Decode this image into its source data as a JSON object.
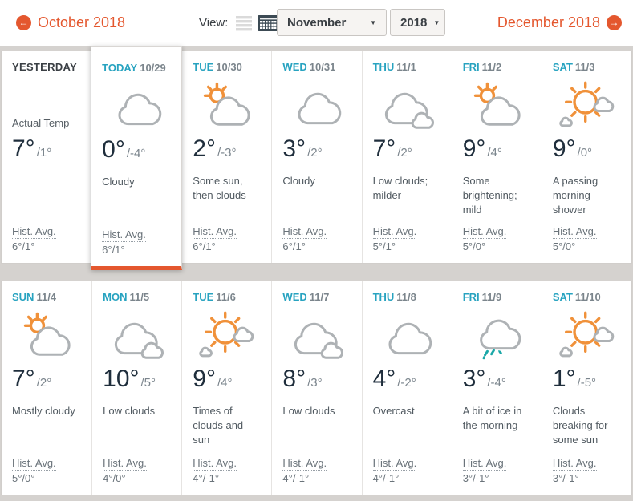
{
  "page": {
    "background": "#d5d2cf",
    "accent_orange": "#e4572e",
    "accent_teal": "#28a3c0",
    "sun_color": "#f0913a",
    "ice_color": "#1ba8a8"
  },
  "topbar": {
    "prev_label": "October 2018",
    "view_label": "View:",
    "view_icons": [
      "list-view-icon",
      "calendar-view-icon"
    ],
    "month_value": "November",
    "year_value": "2018",
    "next_label": "December 2018"
  },
  "hist_label": "Hist. Avg.",
  "rows": [
    {
      "cards": [
        {
          "name": "YESTERDAY",
          "date": "",
          "icon": "none",
          "yesterday": true,
          "pre_temp": "Actual Temp",
          "high": "7°",
          "low": "/1°",
          "desc": "",
          "hist": "6°/1°"
        },
        {
          "name": "TODAY",
          "date": "10/29",
          "icon": "cloud",
          "today": true,
          "high": "0°",
          "low": "/-4°",
          "desc": "Cloudy",
          "hist": "6°/1°"
        },
        {
          "name": "TUE",
          "date": "10/30",
          "icon": "partly-sunny",
          "high": "2°",
          "low": "/-3°",
          "desc": "Some sun, then clouds",
          "hist": "6°/1°"
        },
        {
          "name": "WED",
          "date": "10/31",
          "icon": "cloud",
          "high": "3°",
          "low": "/2°",
          "desc": "Cloudy",
          "hist": "6°/1°"
        },
        {
          "name": "THU",
          "date": "11/1",
          "icon": "clouds",
          "high": "7°",
          "low": "/2°",
          "desc": "Low clouds; milder",
          "hist": "5°/1°"
        },
        {
          "name": "FRI",
          "date": "11/2",
          "icon": "partly-sunny",
          "high": "9°",
          "low": "/4°",
          "desc": "Some brightening; mild",
          "hist": "5°/0°"
        },
        {
          "name": "SAT",
          "date": "11/3",
          "icon": "sun-cloud",
          "high": "9°",
          "low": "/0°",
          "desc": "A passing morning shower",
          "hist": "5°/0°"
        }
      ]
    },
    {
      "cards": [
        {
          "name": "SUN",
          "date": "11/4",
          "icon": "partly-sunny",
          "high": "7°",
          "low": "/2°",
          "desc": "Mostly cloudy",
          "hist": "5°/0°"
        },
        {
          "name": "MON",
          "date": "11/5",
          "icon": "clouds",
          "high": "10°",
          "low": "/5°",
          "desc": "Low clouds",
          "hist": "4°/0°"
        },
        {
          "name": "TUE",
          "date": "11/6",
          "icon": "sun-cloud",
          "high": "9°",
          "low": "/4°",
          "desc": "Times of clouds and sun",
          "hist": "4°/-1°"
        },
        {
          "name": "WED",
          "date": "11/7",
          "icon": "clouds",
          "high": "8°",
          "low": "/3°",
          "desc": "Low clouds",
          "hist": "4°/-1°"
        },
        {
          "name": "THU",
          "date": "11/8",
          "icon": "cloud",
          "high": "4°",
          "low": "/-2°",
          "desc": "Overcast",
          "hist": "4°/-1°"
        },
        {
          "name": "FRI",
          "date": "11/9",
          "icon": "ice",
          "high": "3°",
          "low": "/-4°",
          "desc": "A bit of ice in the morning",
          "hist": "3°/-1°"
        },
        {
          "name": "SAT",
          "date": "11/10",
          "icon": "sun-cloud",
          "high": "1°",
          "low": "/-5°",
          "desc": "Clouds breaking for some sun",
          "hist": "3°/-1°"
        }
      ]
    }
  ]
}
